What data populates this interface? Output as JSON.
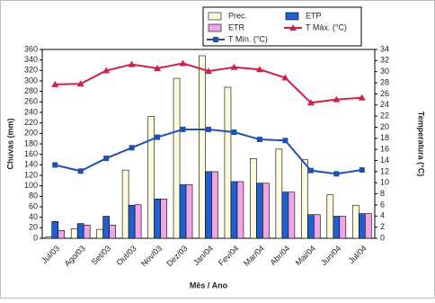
{
  "chart_data": {
    "type": "bar",
    "categories": [
      "Jul/03",
      "Ago/03",
      "Set/03",
      "Out/03",
      "Nov/03",
      "Dez/03",
      "Jan/04",
      "Fev/04",
      "Mar/04",
      "Abr/04",
      "Mai/04",
      "Jun/04",
      "Jul/04"
    ],
    "series": [
      {
        "name": "Prec.",
        "color": "#fffbdc",
        "type": "bar",
        "values": [
          3,
          18,
          17,
          130,
          232,
          305,
          348,
          288,
          152,
          170,
          150,
          83,
          63
        ]
      },
      {
        "name": "ETP",
        "color": "#1f5fd0",
        "type": "bar",
        "values": [
          32,
          28,
          42,
          63,
          75,
          102,
          127,
          108,
          105,
          88,
          45,
          42,
          47
        ]
      },
      {
        "name": "ETR",
        "color": "#f0a6e4",
        "type": "bar",
        "values": [
          15,
          25,
          25,
          64,
          75,
          102,
          127,
          108,
          105,
          88,
          45,
          42,
          47
        ]
      },
      {
        "name": "T Máx. (°C)",
        "color": "#d0204a",
        "type": "line",
        "marker": "triangle",
        "axis": "y2",
        "values": [
          27.7,
          27.8,
          30.2,
          31.3,
          30.6,
          31.5,
          30.1,
          30.8,
          30.4,
          28.9,
          24.4,
          25.0,
          25.3
        ]
      },
      {
        "name": "T Mín. (°C)",
        "color": "#2050b0",
        "type": "line",
        "marker": "square",
        "axis": "y2",
        "values": [
          13.2,
          12.1,
          14.4,
          16.3,
          18.2,
          19.6,
          19.6,
          19.1,
          17.8,
          17.6,
          12.2,
          11.6,
          12.3
        ]
      }
    ],
    "x_label": "Mês / Ano",
    "y_label": "Chuvas (mm)",
    "y2_label": "Temperatura (°C)",
    "ylim": [
      0,
      360
    ],
    "yticks": [
      0,
      20,
      40,
      60,
      80,
      100,
      120,
      140,
      160,
      180,
      200,
      220,
      240,
      260,
      280,
      300,
      320,
      340,
      360
    ],
    "y2lim": [
      0,
      34
    ],
    "y2ticks": [
      0,
      2,
      4,
      6,
      8,
      10,
      12,
      14,
      16,
      18,
      20,
      22,
      24,
      26,
      28,
      30,
      32,
      34
    ],
    "legend": "top"
  }
}
